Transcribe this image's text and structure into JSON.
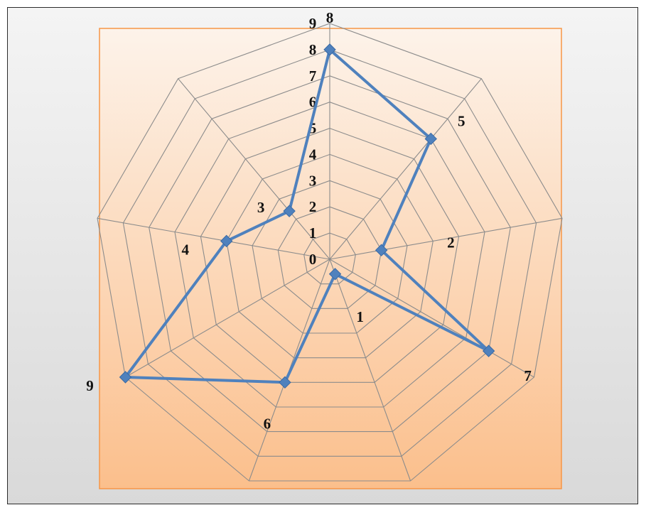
{
  "chart_data": {
    "type": "radar",
    "title": "",
    "categories": [
      "8",
      "5",
      "2",
      "7",
      "1",
      "6",
      "9",
      "4",
      "3"
    ],
    "series": [
      {
        "values": [
          8,
          6,
          2,
          7,
          0.6,
          5,
          9,
          4,
          2.4
        ]
      }
    ],
    "rlim": [
      0,
      9
    ],
    "ticks": [
      0,
      1,
      2,
      3,
      4,
      5,
      6,
      7,
      8,
      9
    ],
    "grid": true,
    "colors": {
      "series": "#4f81bd",
      "marker": "#4f81bd",
      "grid": "#8c8c8c",
      "plot_bg_top": "#fdf3ea",
      "plot_bg_bottom": "#fbbf8c",
      "plot_border": "#f79646"
    }
  }
}
